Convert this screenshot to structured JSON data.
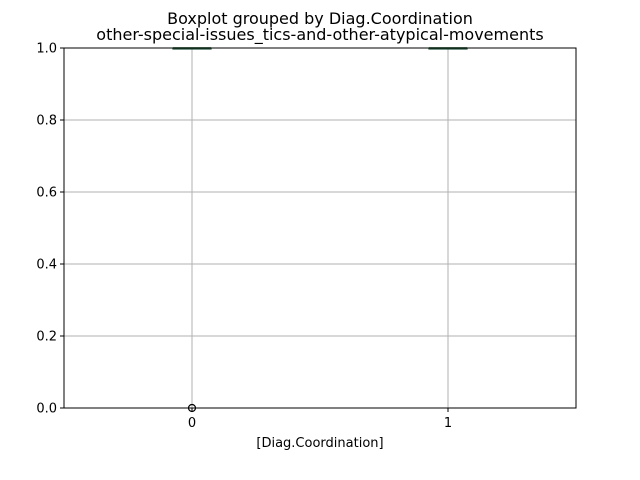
{
  "chart_data": {
    "type": "boxplot",
    "title": "Boxplot grouped by Diag.Coordination",
    "subtitle": "other-special-issues_tics-and-other-atypical-movements",
    "xlabel": "[Diag.Coordination]",
    "ylabel": "",
    "categories": [
      "0",
      "1"
    ],
    "ylim": [
      0,
      1
    ],
    "yticks": [
      "0.0",
      "0.2",
      "0.4",
      "0.6",
      "0.8",
      "1.0"
    ],
    "ytick_values": [
      0,
      0.2,
      0.4,
      0.6,
      0.8,
      1.0
    ],
    "grid": true,
    "boxes": [
      {
        "category": "0",
        "min": 1,
        "q1": 1,
        "median": 1,
        "q3": 1,
        "max": 1,
        "outliers": [
          0
        ]
      },
      {
        "category": "1",
        "min": 1,
        "q1": 1,
        "median": 1,
        "q3": 1,
        "max": 1,
        "outliers": []
      }
    ],
    "colors": {
      "box": "#1f4e3d",
      "median": "#2ca02c",
      "grid": "#b0b0b0",
      "outlier": "#000000"
    }
  }
}
